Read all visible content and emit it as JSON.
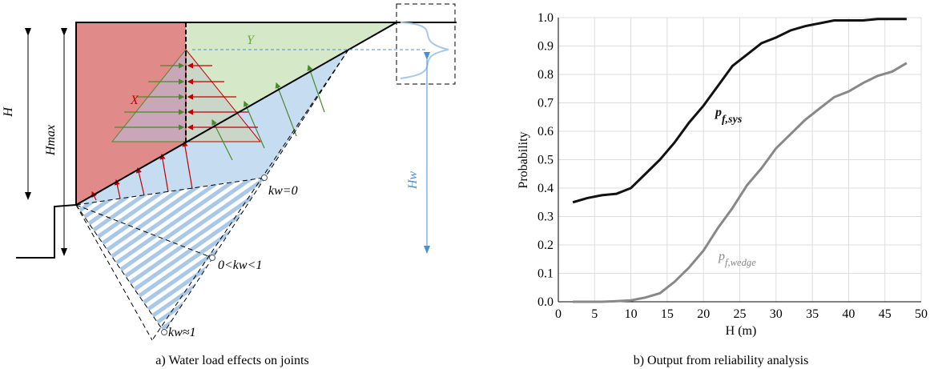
{
  "diagram": {
    "labels": {
      "h": "H",
      "hmax": "Hmax",
      "x": "X",
      "y": "Y",
      "hw": "Hw",
      "kw0": "kw=0",
      "kw_mid": "0<kw<1",
      "kw1": "kw≈1"
    }
  },
  "captions": [
    "a) Water load effects on joints",
    "b) Output from reliability analysis"
  ],
  "chart_data": {
    "type": "line",
    "xlabel": "H (m)",
    "ylabel": "Probability",
    "x": [
      2,
      4,
      6,
      8,
      10,
      12,
      14,
      16,
      18,
      20,
      22,
      24,
      26,
      28,
      30,
      32,
      34,
      36,
      38,
      40,
      42,
      44,
      46,
      48
    ],
    "series": [
      {
        "name": "pf,sys",
        "color": "#111111",
        "values": [
          0.35,
          0.365,
          0.375,
          0.38,
          0.4,
          0.45,
          0.5,
          0.56,
          0.63,
          0.69,
          0.76,
          0.83,
          0.87,
          0.91,
          0.93,
          0.955,
          0.97,
          0.98,
          0.99,
          0.99,
          0.99,
          0.995,
          0.995,
          0.995
        ]
      },
      {
        "name": "pf,wedge",
        "color": "#888888",
        "values": [
          0,
          0,
          0,
          0.002,
          0.005,
          0.015,
          0.03,
          0.07,
          0.12,
          0.18,
          0.26,
          0.33,
          0.41,
          0.47,
          0.54,
          0.59,
          0.64,
          0.68,
          0.72,
          0.74,
          0.77,
          0.795,
          0.81,
          0.84
        ]
      }
    ],
    "xlim": [
      0,
      50
    ],
    "xticks": [
      0,
      5,
      10,
      15,
      20,
      25,
      30,
      35,
      40,
      45,
      50
    ],
    "ylim": [
      0,
      1
    ],
    "yticks": [
      {
        "value": 0,
        "label": "0.0"
      },
      0.1,
      0.2,
      0.3,
      0.4,
      0.5,
      0.6,
      0.7,
      0.8,
      0.9,
      {
        "value": 1,
        "label": "1.0"
      }
    ],
    "grid": true
  }
}
